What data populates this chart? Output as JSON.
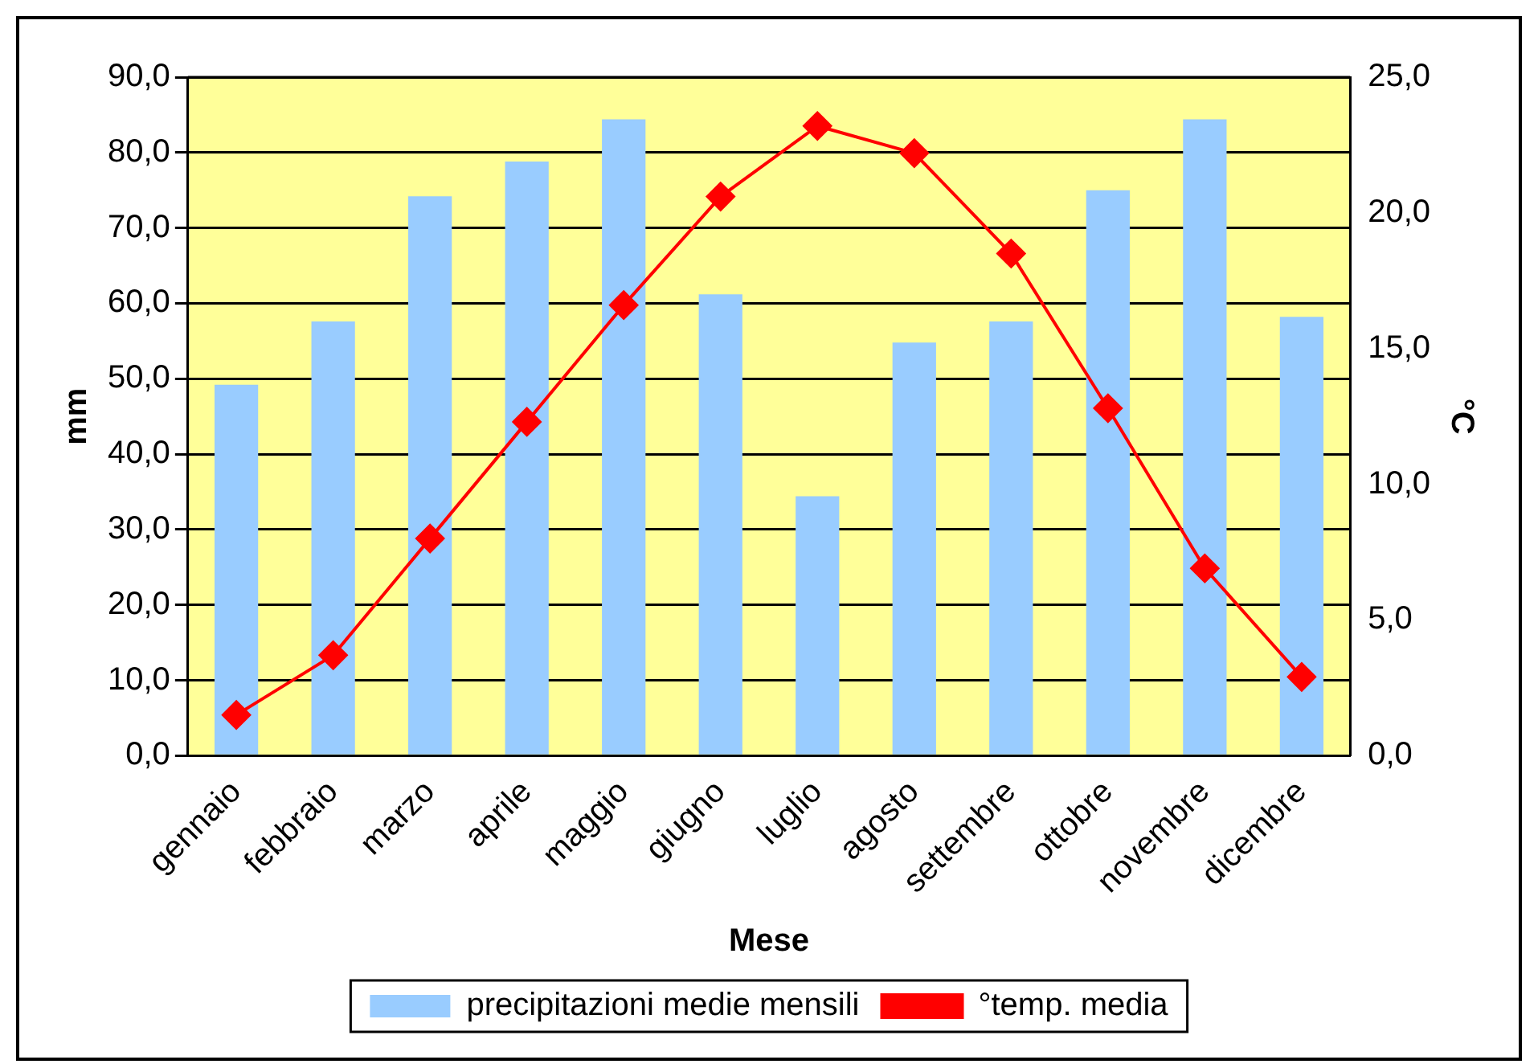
{
  "chart_data": {
    "type": "bar",
    "xlabel": "Mese",
    "ylabel": "mm",
    "y2label": "°C",
    "categories": [
      "gennaio",
      "febbraio",
      "marzo",
      "aprile",
      "maggio",
      "giugno",
      "luglio",
      "agosto",
      "settembre",
      "ottobre",
      "novembre",
      "dicembre"
    ],
    "series": [
      {
        "name": "precipitazioni medie mensili",
        "color": "#99ccff",
        "values": [
          49.2,
          57.6,
          74.2,
          78.8,
          84.4,
          61.2,
          34.4,
          54.8,
          57.6,
          75.0,
          84.4,
          58.2
        ]
      },
      {
        "name": "°temp. media",
        "type": "line",
        "axis": "y2",
        "color": "#ff0000",
        "marker": "diamond",
        "values": [
          1.5,
          3.7,
          8.0,
          12.3,
          16.6,
          20.6,
          23.2,
          22.2,
          18.5,
          12.8,
          6.9,
          2.9
        ]
      }
    ],
    "ylim": [
      0,
      90
    ],
    "yticks": [
      {
        "value": 0,
        "label": "0,0"
      },
      {
        "value": 10,
        "label": "10,0"
      },
      {
        "value": 20,
        "label": "20,0"
      },
      {
        "value": 30,
        "label": "30,0"
      },
      {
        "value": 40,
        "label": "40,0"
      },
      {
        "value": 50,
        "label": "50,0"
      },
      {
        "value": 60,
        "label": "60,0"
      },
      {
        "value": 70,
        "label": "70,0"
      },
      {
        "value": 80,
        "label": "80,0"
      },
      {
        "value": 90,
        "label": "90,0"
      }
    ],
    "y2lim": [
      0,
      25
    ],
    "y2ticks": [
      {
        "value": 0,
        "label": "0,0"
      },
      {
        "value": 5,
        "label": "5,0"
      },
      {
        "value": 10,
        "label": "10,0"
      },
      {
        "value": 15,
        "label": "15,0"
      },
      {
        "value": 20,
        "label": "20,0"
      },
      {
        "value": 25,
        "label": "25,0"
      }
    ],
    "grid": "y",
    "legend": "bottom"
  }
}
